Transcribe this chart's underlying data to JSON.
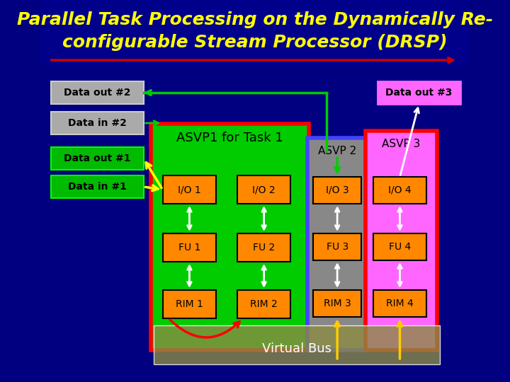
{
  "title_line1": "Parallel Task Processing on the Dynamically Re-",
  "title_line2": "configurable Stream Processor (DRSP)",
  "title_color": "#FFFF00",
  "title_fontsize": 18,
  "bg_color": "#000080",
  "arrow_line_color": "#CC0000",
  "asvp1_bg": "#00CC00",
  "asvp2_bg": "#888888",
  "asvp3_bg": "#FF66FF",
  "asvp1_border": "#FF0000",
  "asvp2_border": "#4444FF",
  "asvp3_border": "#FF0000",
  "io_fu_rim_color": "#FF8800",
  "io_fu_rim_border": "#000000",
  "virtual_bus_color": "#888844",
  "virtual_bus_text": "Virtual Bus",
  "data_out2_box_color": "#AAAAAA",
  "data_out3_box_color": "#FF66FF",
  "data_in2_box_color": "#AAAAAA",
  "data_out1_box_color": "#00CC00",
  "data_in1_box_color": "#00CC00",
  "green_arrow_color": "#00CC00",
  "yellow_arrow_color": "#FFFF00",
  "white_arrow_color": "#FFFFFF",
  "red_arrow_color": "#FF0000",
  "gold_arrow_color": "#FFCC00"
}
